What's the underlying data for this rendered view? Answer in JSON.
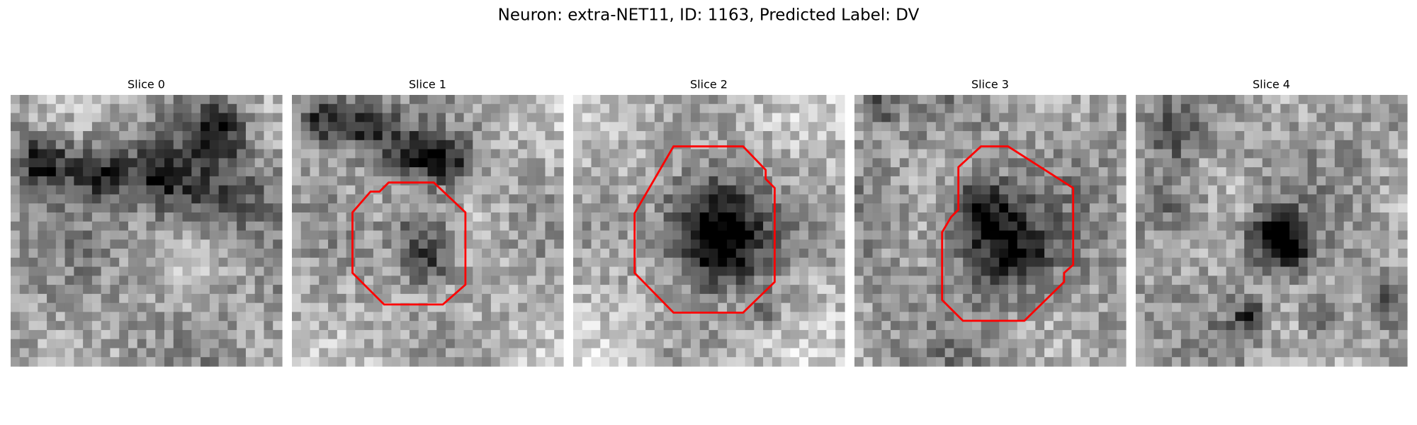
{
  "title": "Neuron: extra-NET11, ID: 1163, Predicted Label: DV",
  "panels": [
    {
      "title": "Slice 0"
    },
    {
      "title": "Slice 1"
    },
    {
      "title": "Slice 2"
    },
    {
      "title": "Slice 3"
    },
    {
      "title": "Slice 4"
    }
  ]
}
